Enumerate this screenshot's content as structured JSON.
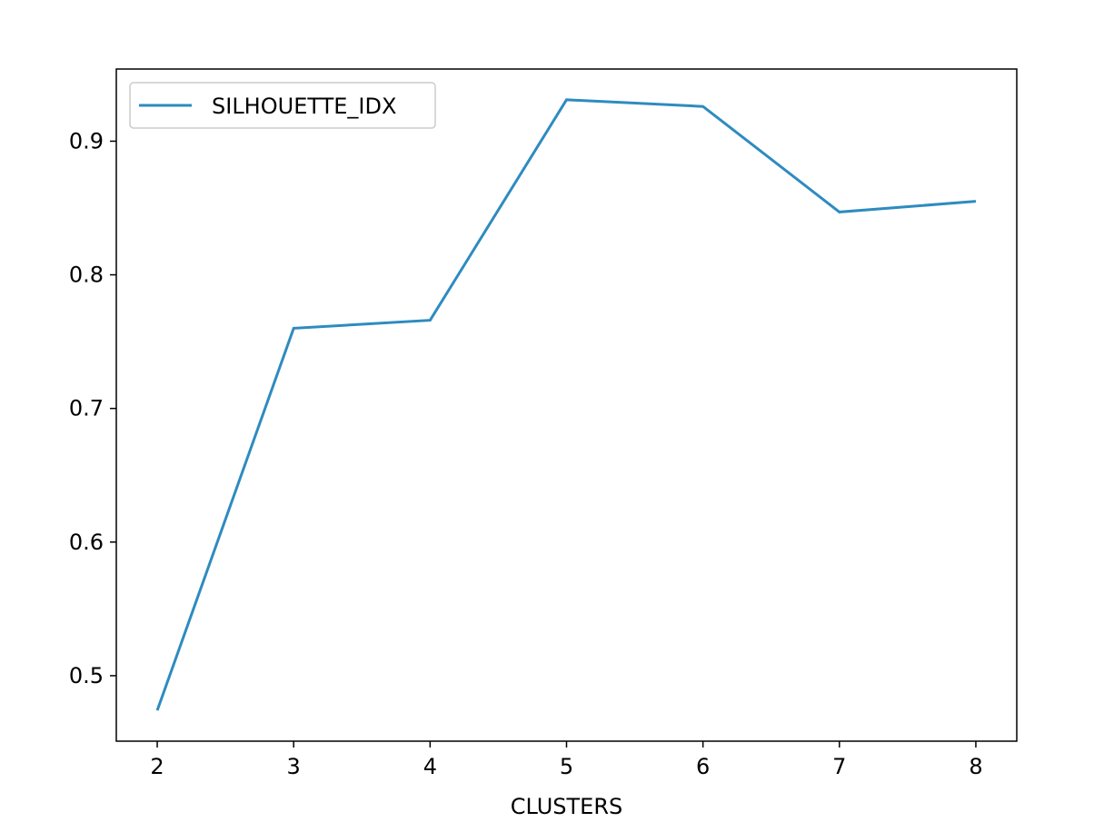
{
  "chart_data": {
    "type": "line",
    "title": "",
    "xlabel": "CLUSTERS",
    "ylabel": "",
    "x": [
      2,
      3,
      4,
      5,
      6,
      7,
      8
    ],
    "series": [
      {
        "name": "SILHOUETTE_IDX",
        "values": [
          0.474,
          0.76,
          0.766,
          0.931,
          0.926,
          0.847,
          0.855
        ],
        "color": "#2e8bc0"
      }
    ],
    "xlim": [
      1.7,
      8.3
    ],
    "ylim": [
      0.451,
      0.954
    ],
    "xticks": [
      2,
      3,
      4,
      5,
      6,
      7,
      8
    ],
    "xtick_labels": [
      "2",
      "3",
      "4",
      "5",
      "6",
      "7",
      "8"
    ],
    "yticks": [
      0.5,
      0.6,
      0.7,
      0.8,
      0.9
    ],
    "ytick_labels": [
      "0.5",
      "0.6",
      "0.7",
      "0.8",
      "0.9"
    ],
    "grid": false,
    "legend_position": "top-left"
  }
}
